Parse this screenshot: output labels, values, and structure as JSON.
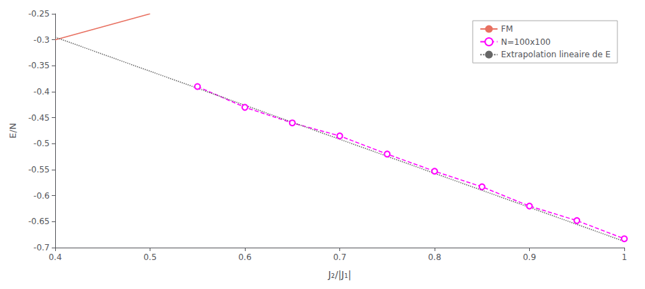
{
  "chart_data": {
    "type": "line",
    "xlabel": "J₂/|J₁|",
    "ylabel": "E/N",
    "xlim": [
      0.4,
      1.0
    ],
    "ylim": [
      -0.7,
      -0.25
    ],
    "xticks": [
      0.4,
      0.5,
      0.6,
      0.7,
      0.8,
      0.9,
      1
    ],
    "yticks": [
      -0.25,
      -0.3,
      -0.35,
      -0.4,
      -0.45,
      -0.5,
      -0.55,
      -0.6,
      -0.65,
      -0.7
    ],
    "grid": false,
    "legend": "upper right",
    "series": [
      {
        "name": "FM",
        "color": "#E87060",
        "line_style": "solid",
        "marker": "none",
        "x": [
          0.4,
          0.5
        ],
        "values": [
          -0.3,
          -0.25
        ]
      },
      {
        "name": "N=100x100",
        "color": "#FF00FF",
        "line_style": "dashed",
        "marker": "circle",
        "x": [
          0.55,
          0.6,
          0.65,
          0.7,
          0.75,
          0.8,
          0.85,
          0.9,
          0.95,
          1.0
        ],
        "values": [
          -0.39,
          -0.43,
          -0.46,
          -0.485,
          -0.52,
          -0.553,
          -0.583,
          -0.62,
          -0.648,
          -0.683
        ]
      },
      {
        "name": "Extrapolation lineaire de E",
        "color": "#666666",
        "line_style": "dotted",
        "marker": "none",
        "x": [
          0.4,
          1.0
        ],
        "values": [
          -0.295,
          -0.688
        ]
      }
    ]
  }
}
